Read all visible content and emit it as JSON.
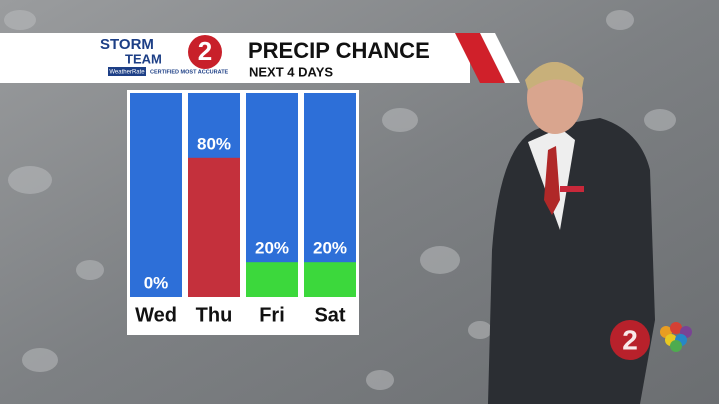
{
  "branding": {
    "storm": "STORM",
    "team": "TEAM",
    "channel": "2",
    "rating": "WeatherRate",
    "certified": "CERTIFIED MOST ACCURATE"
  },
  "chart_data": {
    "type": "bar",
    "title": "PRECIP CHANCE",
    "subtitle": "NEXT 4 DAYS",
    "categories": [
      "Wed",
      "Thu",
      "Fri",
      "Sat"
    ],
    "values": [
      0,
      80,
      20,
      20
    ],
    "value_labels": [
      "0%",
      "80%",
      "20%",
      "20%"
    ],
    "colors": [
      null,
      "#c4303c",
      "#3cd83c",
      "#3cd83c"
    ],
    "background_color": "#2d6fd8",
    "ylim": [
      0,
      100
    ]
  }
}
